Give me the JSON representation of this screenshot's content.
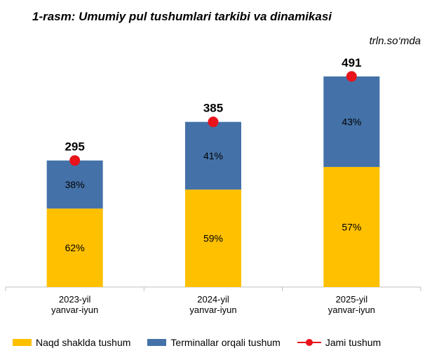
{
  "title": "1-rasm: Umumiy pul tushumlari tarkibi va dinamikasi",
  "unit": "trln.so‘mda",
  "colors": {
    "cash": "#FFC000",
    "terminal": "#4472A8",
    "total": "#E8131B",
    "axis": "#BFBFBF",
    "text": "#000000"
  },
  "chart_data": {
    "type": "bar",
    "stacked": true,
    "categories": [
      [
        "2023-yil",
        "yanvar-iyun"
      ],
      [
        "2024-yil",
        "yanvar-iyun"
      ],
      [
        "2025-yil",
        "yanvar-iyun"
      ]
    ],
    "series": [
      {
        "name": "Naqd shaklda tushum",
        "color_key": "cash",
        "labels": [
          "62%",
          "59%",
          "57%"
        ],
        "share": [
          62,
          59,
          57
        ]
      },
      {
        "name": "Terminallar orqali tushum",
        "color_key": "terminal",
        "labels": [
          "38%",
          "41%",
          "43%"
        ],
        "share": [
          38,
          41,
          43
        ]
      }
    ],
    "totals": {
      "name": "Jami tushum",
      "values": [
        295,
        385,
        491
      ],
      "marker": "dot"
    },
    "ylim": [
      0,
      571
    ],
    "grid": false,
    "legend_position": "bottom"
  }
}
